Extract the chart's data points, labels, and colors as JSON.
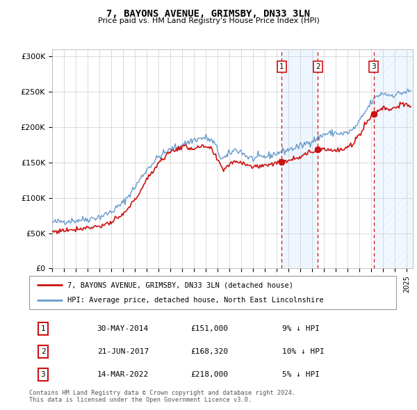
{
  "title": "7, BAYONS AVENUE, GRIMSBY, DN33 3LN",
  "subtitle": "Price paid vs. HM Land Registry's House Price Index (HPI)",
  "ylabel_ticks": [
    "£0",
    "£50K",
    "£100K",
    "£150K",
    "£200K",
    "£250K",
    "£300K"
  ],
  "ytick_values": [
    0,
    50000,
    100000,
    150000,
    200000,
    250000,
    300000
  ],
  "ylim": [
    0,
    310000
  ],
  "xlim_start": 1995.0,
  "xlim_end": 2025.5,
  "legend_line1": "7, BAYONS AVENUE, GRIMSBY, DN33 3LN (detached house)",
  "legend_line2": "HPI: Average price, detached house, North East Lincolnshire",
  "transaction_labels": [
    "1",
    "2",
    "3"
  ],
  "transaction_dates": [
    2014.41,
    2017.47,
    2022.2
  ],
  "transaction_prices": [
    151000,
    168320,
    218000
  ],
  "transaction_info": [
    [
      "1",
      "30-MAY-2014",
      "£151,000",
      "9% ↓ HPI"
    ],
    [
      "2",
      "21-JUN-2017",
      "£168,320",
      "10% ↓ HPI"
    ],
    [
      "3",
      "14-MAR-2022",
      "£218,000",
      "5% ↓ HPI"
    ]
  ],
  "footer_line1": "Contains HM Land Registry data © Crown copyright and database right 2024.",
  "footer_line2": "This data is licensed under the Open Government Licence v3.0.",
  "hpi_color": "#6699cc",
  "price_color": "#cc1111",
  "background_color": "#ffffff",
  "grid_color": "#cccccc",
  "shading_color": "#ddeeff"
}
